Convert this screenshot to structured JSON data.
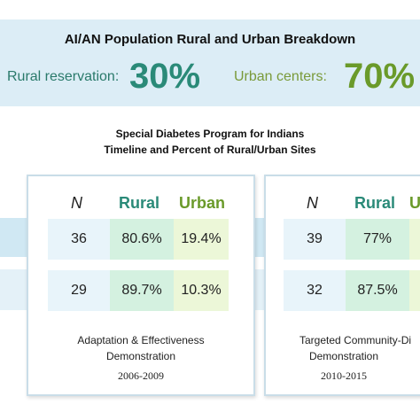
{
  "banner": {
    "title": "AI/AN Population Rural and Urban Breakdown",
    "rural_label": "Rural reservation:",
    "rural_value": "30%",
    "urban_label": "Urban centers:",
    "urban_value": "70%"
  },
  "subtitle": {
    "line1": "Special Diabetes Program for Indians",
    "line2": "Timeline and Percent of Rural/Urban Sites"
  },
  "panels": [
    {
      "headers": {
        "n": "N",
        "rural": "Rural",
        "urban": "Urban"
      },
      "rows": [
        {
          "n": "36",
          "rural": "80.6%",
          "urban": "19.4%"
        },
        {
          "n": "29",
          "rural": "89.7%",
          "urban": "10.3%"
        }
      ],
      "caption_line1": "Adaptation & Effectiveness",
      "caption_line2": "Demonstration",
      "years": "2006-2009"
    },
    {
      "headers": {
        "n": "N",
        "rural": "Rural",
        "urban": "U"
      },
      "rows": [
        {
          "n": "39",
          "rural": "77%"
        },
        {
          "n": "32",
          "rural": "87.5%"
        }
      ],
      "caption_line1": "Targeted Community-Di",
      "caption_line2": "Demonstration",
      "years": "2010-2015"
    }
  ],
  "colors": {
    "banner_bg": "#dcedf6",
    "rural_text": "#2a8a78",
    "urban_text": "#6a9a2a"
  }
}
